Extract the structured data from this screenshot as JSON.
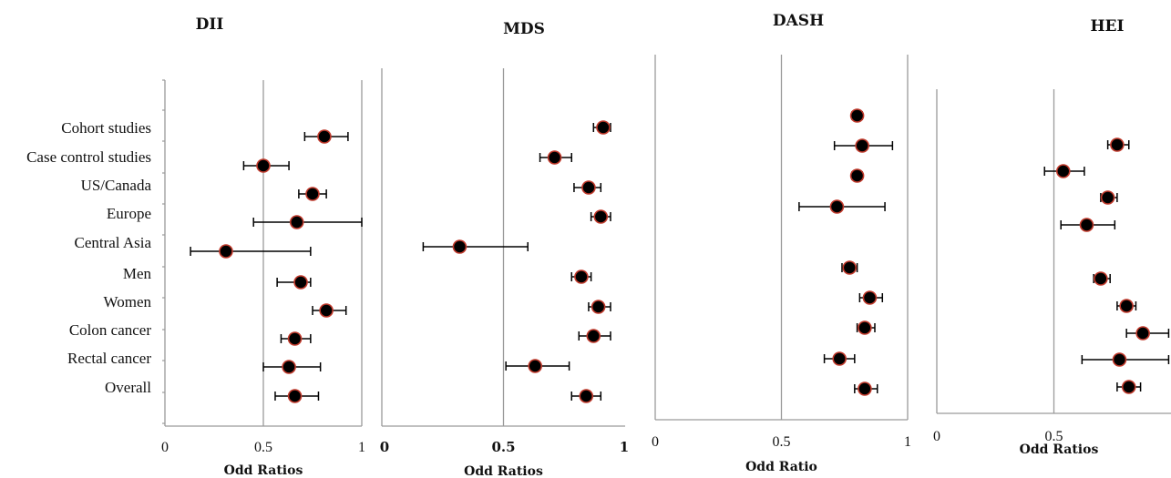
{
  "chart_data": {
    "type": "forest",
    "row_labels": [
      "Cohort studies",
      "Case control studies",
      "US/Canada",
      "Europe",
      "Central Asia",
      "Men",
      "Women",
      "Colon cancer",
      "Rectal cancer",
      "Overall"
    ],
    "panels": [
      {
        "title": "DII",
        "xlabel": "Odd Ratios",
        "xlim": [
          0,
          1
        ],
        "ticks": [
          "0",
          "0.5",
          "1"
        ],
        "points": [
          {
            "or": 0.81,
            "lo": 0.71,
            "hi": 0.93
          },
          {
            "or": 0.5,
            "lo": 0.4,
            "hi": 0.63
          },
          {
            "or": 0.75,
            "lo": 0.68,
            "hi": 0.82
          },
          {
            "or": 0.67,
            "lo": 0.45,
            "hi": 1.0
          },
          {
            "or": 0.31,
            "lo": 0.13,
            "hi": 0.74
          },
          {
            "or": 0.69,
            "lo": 0.57,
            "hi": 0.74
          },
          {
            "or": 0.82,
            "lo": 0.75,
            "hi": 0.92
          },
          {
            "or": 0.66,
            "lo": 0.59,
            "hi": 0.74
          },
          {
            "or": 0.63,
            "lo": 0.5,
            "hi": 0.79
          },
          {
            "or": 0.66,
            "lo": 0.56,
            "hi": 0.78
          }
        ]
      },
      {
        "title": "MDS",
        "xlabel": "Odd Ratios",
        "xlim": [
          0,
          1
        ],
        "ticks": [
          "0",
          "0.5",
          "1"
        ],
        "points": [
          {
            "or": 0.91,
            "lo": 0.87,
            "hi": 0.94
          },
          {
            "or": 0.71,
            "lo": 0.65,
            "hi": 0.78
          },
          {
            "or": 0.85,
            "lo": 0.79,
            "hi": 0.9
          },
          {
            "or": 0.9,
            "lo": 0.86,
            "hi": 0.94
          },
          {
            "or": 0.32,
            "lo": 0.17,
            "hi": 0.6
          },
          {
            "or": 0.82,
            "lo": 0.78,
            "hi": 0.86
          },
          {
            "or": 0.89,
            "lo": 0.85,
            "hi": 0.94
          },
          {
            "or": 0.87,
            "lo": 0.81,
            "hi": 0.94
          },
          {
            "or": 0.63,
            "lo": 0.51,
            "hi": 0.77
          },
          {
            "or": 0.84,
            "lo": 0.78,
            "hi": 0.9
          }
        ]
      },
      {
        "title": "DASH",
        "xlabel": "Odd Ratio",
        "xlim": [
          0,
          1
        ],
        "ticks": [
          "0",
          "0.5",
          "1"
        ],
        "points": [
          {
            "or": 0.8,
            "lo": 0.78,
            "hi": 0.82
          },
          {
            "or": 0.82,
            "lo": 0.71,
            "hi": 0.94
          },
          {
            "or": 0.8,
            "lo": 0.78,
            "hi": 0.82
          },
          {
            "or": 0.72,
            "lo": 0.57,
            "hi": 0.91
          },
          {
            "or": 0.77,
            "lo": 0.74,
            "hi": 0.8
          },
          {
            "or": 0.85,
            "lo": 0.81,
            "hi": 0.9
          },
          {
            "or": 0.83,
            "lo": 0.8,
            "hi": 0.87
          },
          {
            "or": 0.73,
            "lo": 0.67,
            "hi": 0.79
          },
          {
            "or": 0.83,
            "lo": 0.79,
            "hi": 0.88
          }
        ]
      },
      {
        "title": "HEI",
        "xlabel": "Odd Ratios",
        "xlim": [
          0,
          1
        ],
        "ticks": [
          "0",
          "0.5"
        ],
        "points": [
          {
            "or": 0.77,
            "lo": 0.73,
            "hi": 0.82
          },
          {
            "or": 0.54,
            "lo": 0.46,
            "hi": 0.63
          },
          {
            "or": 0.73,
            "lo": 0.7,
            "hi": 0.77
          },
          {
            "or": 0.64,
            "lo": 0.53,
            "hi": 0.76
          },
          {
            "or": 0.7,
            "lo": 0.67,
            "hi": 0.74
          },
          {
            "or": 0.81,
            "lo": 0.77,
            "hi": 0.85
          },
          {
            "or": 0.88,
            "lo": 0.81,
            "hi": 0.99
          },
          {
            "or": 0.78,
            "lo": 0.62,
            "hi": 0.99
          },
          {
            "or": 0.82,
            "lo": 0.77,
            "hi": 0.87
          }
        ]
      }
    ]
  }
}
